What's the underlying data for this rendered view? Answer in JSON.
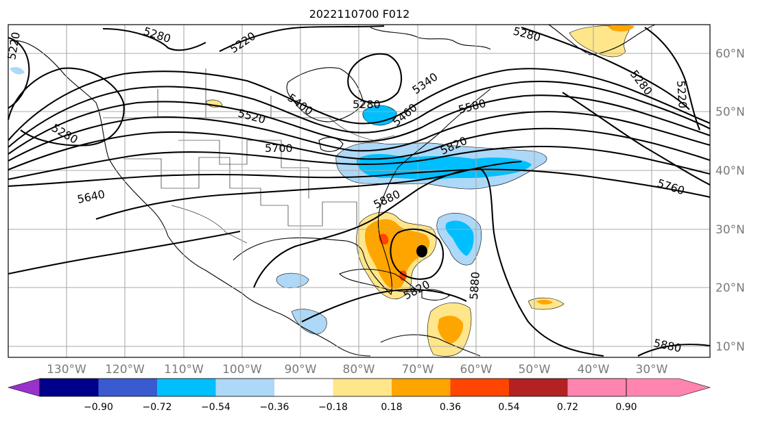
{
  "title": "2022110700 F012",
  "map": {
    "lon_labels": [
      "130°W",
      "120°W",
      "110°W",
      "100°W",
      "90°W",
      "80°W",
      "70°W",
      "60°W",
      "50°W",
      "40°W",
      "30°W"
    ],
    "lat_labels": [
      "60°N",
      "50°N",
      "40°N",
      "30°N",
      "20°N",
      "10°N"
    ],
    "contour_labels": [
      "5280",
      "5220",
      "5220",
      "5280",
      "5280",
      "5220",
      "5280",
      "5400",
      "5520",
      "5280",
      "5340",
      "5460",
      "5580",
      "5700",
      "5820",
      "5640",
      "5760",
      "5880",
      "5820",
      "5880",
      "5880"
    ],
    "marker": "black-dot"
  },
  "colorbar": {
    "ticks": [
      "−0.90",
      "−0.72",
      "−0.54",
      "−0.36",
      "−0.18",
      "0.18",
      "0.36",
      "0.54",
      "0.72",
      "0.90"
    ],
    "colors": [
      "#9932cc",
      "#00008b",
      "#3a5bcf",
      "#00bfff",
      "#add8f7",
      "#ffffff",
      "#ffe68a",
      "#ffa500",
      "#ff4500",
      "#b22222",
      "#ff85b0"
    ]
  },
  "colors": {
    "grid": "#a9a9a9",
    "tick_label": "#7a7a7a"
  }
}
